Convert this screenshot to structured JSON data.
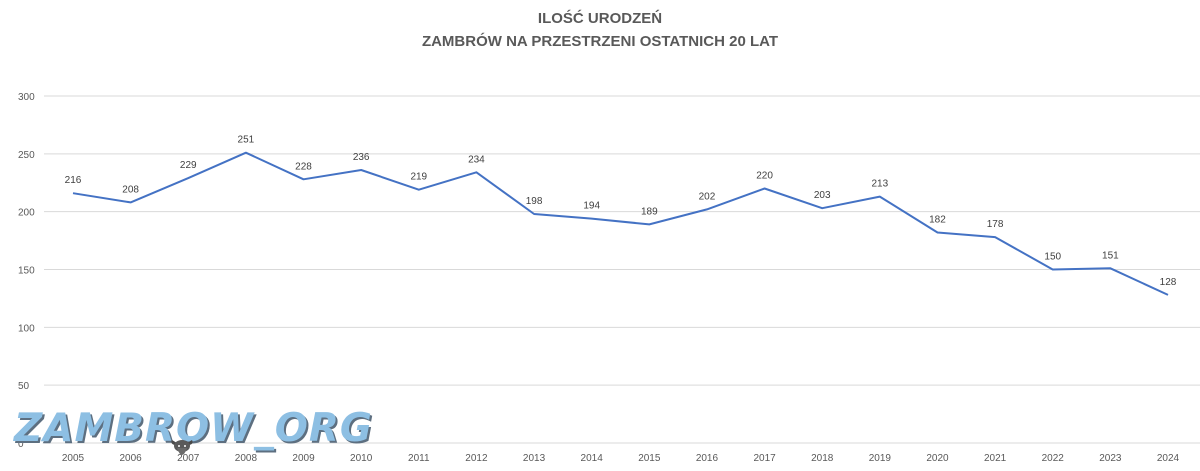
{
  "chart_data": {
    "type": "line",
    "title": "ILOŚĆ URODZEŃ",
    "subtitle": "ZAMBRÓW NA PRZESTRZENI OSTATNICH 20 LAT",
    "xlabel": "",
    "ylabel": "",
    "categories": [
      "2005",
      "2006",
      "2007",
      "2008",
      "2009",
      "2010",
      "2011",
      "2012",
      "2013",
      "2014",
      "2015",
      "2016",
      "2017",
      "2018",
      "2019",
      "2020",
      "2021",
      "2022",
      "2023",
      "2024"
    ],
    "series": [
      {
        "values": [
          216,
          208,
          229,
          251,
          228,
          236,
          219,
          234,
          198,
          194,
          189,
          202,
          220,
          203,
          213,
          182,
          178,
          150,
          151,
          128
        ]
      }
    ],
    "ylim": [
      0,
      300
    ],
    "yticks": [
      0,
      50,
      100,
      150,
      200,
      250,
      300
    ],
    "grid": true,
    "legend": "none",
    "line_color": "#4472c4",
    "grid_color": "#d9d9d9",
    "text_color": "#595959"
  },
  "watermark": {
    "text": "ZAMBROW_ORG",
    "icon": "bison-head-icon",
    "color": "#8dbfe3"
  }
}
